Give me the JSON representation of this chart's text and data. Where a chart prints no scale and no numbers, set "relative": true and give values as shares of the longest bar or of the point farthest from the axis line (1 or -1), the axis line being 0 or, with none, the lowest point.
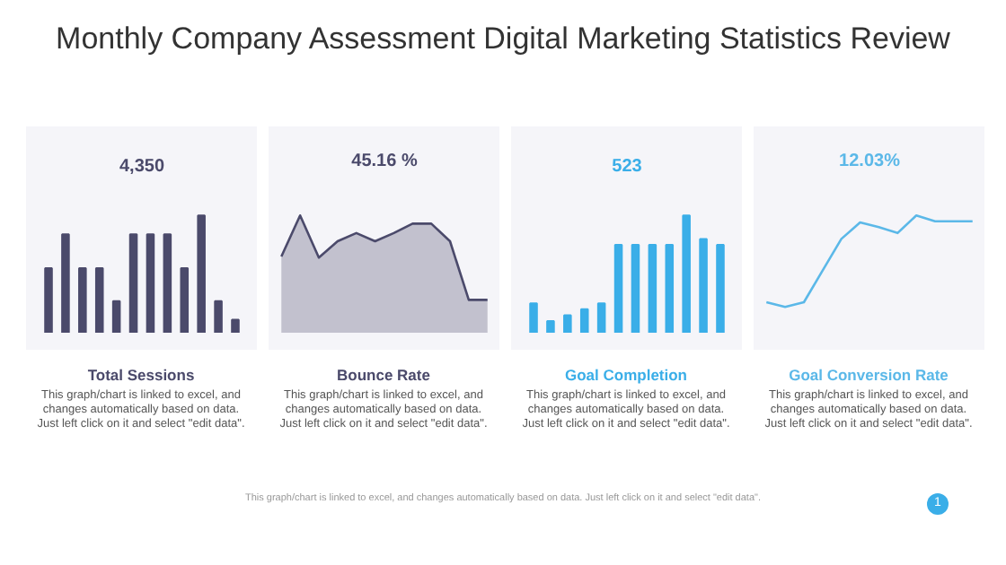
{
  "chart_data": [
    {
      "type": "other",
      "title": "Monthly Company Assessment Digital Marketing  Statistics Review",
      "annotations": [
        "This graph/chart is linked to excel, and changes automatically based on data. Just left click on it and select \"edit data\".",
        "1"
      ]
    },
    {
      "type": "bar",
      "title": "Total Sessions",
      "subtitle": "4,350",
      "annotations": [
        "This graph/chart is linked to excel, and changes automatically based on data. Just left click on it and select \"edit data\"."
      ],
      "relative": true,
      "categories": [
        null,
        null,
        null,
        null,
        null,
        null,
        null,
        null,
        null,
        null,
        null,
        null
      ],
      "series": [
        {
          "color": "#4b4a6b",
          "values": [
            0.55,
            0.84,
            0.55,
            0.55,
            0.27,
            0.84,
            0.84,
            0.84,
            0.55,
            1,
            0.27,
            0.11
          ]
        }
      ]
    },
    {
      "type": "area",
      "title": "Bounce Rate",
      "subtitle": "45.16 %",
      "annotations": [
        "This graph/chart is linked to excel, and changes automatically based on data. Just left click on it and select \"edit data\"."
      ],
      "relative": true,
      "categories": [
        null,
        null,
        null,
        null,
        null,
        null,
        null,
        null,
        null,
        null,
        null,
        null
      ],
      "series": [
        {
          "color": "#4b4a6b",
          "values": [
            0.65,
            1,
            0.64,
            0.78,
            0.85,
            0.78,
            0.85,
            0.93,
            0.93,
            0.78,
            0.28,
            0.28
          ]
        }
      ]
    },
    {
      "type": "bar",
      "title": "Goal Completion",
      "subtitle": "523",
      "annotations": [
        "This graph/chart is linked to excel, and changes automatically based on data. Just left click on it and select \"edit data\"."
      ],
      "relative": true,
      "categories": [
        null,
        null,
        null,
        null,
        null,
        null,
        null,
        null,
        null,
        null,
        null,
        null
      ],
      "series": [
        {
          "color": "#3aaee8",
          "values": [
            0.25,
            0.1,
            0.15,
            0.2,
            0.25,
            0.75,
            0.75,
            0.75,
            0.75,
            1,
            0.8,
            0.75
          ]
        }
      ]
    },
    {
      "type": "line",
      "title": "Goal Conversion Rate",
      "subtitle": "12.03%",
      "annotations": [
        "This graph/chart is linked to excel, and changes automatically based on data. Just left click on it and select \"edit data\"."
      ],
      "relative": true,
      "categories": [
        null,
        null,
        null,
        null,
        null,
        null,
        null,
        null,
        null,
        null,
        null,
        null
      ],
      "series": [
        {
          "color": "#5bb8e8",
          "values": [
            0.26,
            0.22,
            0.26,
            0.53,
            0.8,
            0.94,
            0.9,
            0.85,
            1,
            0.95,
            0.95,
            0.95
          ]
        }
      ]
    }
  ]
}
